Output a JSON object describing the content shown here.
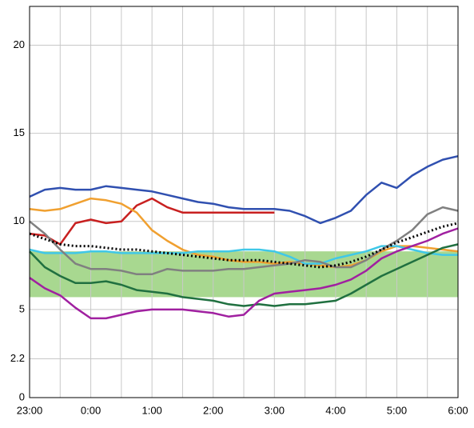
{
  "chart_data": {
    "type": "line",
    "x": [
      0,
      0.25,
      0.5,
      0.75,
      1,
      1.25,
      1.5,
      1.75,
      2,
      2.25,
      2.5,
      2.75,
      3,
      3.25,
      3.5,
      3.75,
      4,
      4.25,
      4.5,
      4.75,
      5,
      5.25,
      5.5,
      5.75,
      6,
      6.25,
      6.5,
      6.75,
      7
    ],
    "xlim": [
      0,
      7
    ],
    "xticks": [
      {
        "value": 0,
        "label": "23:00"
      },
      {
        "value": 1,
        "label": "0:00"
      },
      {
        "value": 2,
        "label": "1:00"
      },
      {
        "value": 3,
        "label": "2:00"
      },
      {
        "value": 4,
        "label": "3:00"
      },
      {
        "value": 5,
        "label": "4:00"
      },
      {
        "value": 6,
        "label": "5:00"
      },
      {
        "value": 7,
        "label": "6:00"
      }
    ],
    "xminor": [
      0.5,
      1.5,
      2.5,
      3.5,
      4.5,
      5.5,
      6.5
    ],
    "ylim": [
      0,
      22.2
    ],
    "yticks": [
      0,
      2.2,
      5,
      10,
      15,
      20
    ],
    "grid": true,
    "target_range": [
      5.7,
      8.3
    ],
    "target_color": "#a8d890",
    "series": [
      {
        "color": "#3050b0",
        "values": [
          11.4,
          11.8,
          11.9,
          11.8,
          11.8,
          12.0,
          11.9,
          11.8,
          11.7,
          11.5,
          11.3,
          11.1,
          11.0,
          10.8,
          10.7,
          10.7,
          10.7,
          10.6,
          10.3,
          9.9,
          10.2,
          10.6,
          11.5,
          12.2,
          11.9,
          12.6,
          13.1,
          13.5,
          13.7
        ]
      },
      {
        "color": "#c82020",
        "values": [
          9.3,
          9.2,
          8.7,
          9.9,
          10.1,
          9.9,
          10.0,
          10.9,
          11.3,
          10.8,
          10.5,
          10.5,
          10.5,
          10.5,
          10.5,
          10.5,
          10.5,
          null,
          null,
          null,
          null,
          null,
          null,
          null,
          null,
          null,
          null,
          null,
          null
        ]
      },
      {
        "color": "#f0a030",
        "values": [
          10.7,
          10.6,
          10.7,
          11.0,
          11.3,
          11.2,
          11.0,
          10.5,
          9.5,
          8.9,
          8.4,
          8.1,
          8.0,
          7.8,
          7.7,
          7.7,
          7.6,
          7.7,
          7.6,
          7.5,
          7.4,
          7.5,
          7.8,
          8.3,
          8.6,
          8.6,
          8.5,
          8.4,
          8.3
        ]
      },
      {
        "color": "#40c8e8",
        "values": [
          8.4,
          8.2,
          8.2,
          8.2,
          8.3,
          8.3,
          8.2,
          8.2,
          8.2,
          8.2,
          8.2,
          8.3,
          8.3,
          8.3,
          8.4,
          8.4,
          8.3,
          8.0,
          7.6,
          7.6,
          7.9,
          8.1,
          8.3,
          8.6,
          8.6,
          8.4,
          8.2,
          8.1,
          8.1
        ]
      },
      {
        "color": "#808080",
        "values": [
          10.0,
          9.3,
          8.4,
          7.6,
          7.3,
          7.3,
          7.2,
          7.0,
          7.0,
          7.3,
          7.2,
          7.2,
          7.2,
          7.3,
          7.3,
          7.4,
          7.5,
          7.6,
          7.8,
          7.7,
          7.4,
          7.4,
          7.8,
          8.4,
          8.9,
          9.5,
          10.4,
          10.8,
          10.6
        ]
      },
      {
        "color": "#207040",
        "values": [
          8.3,
          7.4,
          6.9,
          6.5,
          6.5,
          6.6,
          6.4,
          6.1,
          6.0,
          5.9,
          5.7,
          5.6,
          5.5,
          5.3,
          5.2,
          5.3,
          5.2,
          5.3,
          5.3,
          5.4,
          5.5,
          5.9,
          6.4,
          6.9,
          7.3,
          7.7,
          8.1,
          8.5,
          8.7
        ]
      },
      {
        "color": "#a020a0",
        "values": [
          6.8,
          6.2,
          5.8,
          5.1,
          4.5,
          4.5,
          4.7,
          4.9,
          5.0,
          5.0,
          5.0,
          4.9,
          4.8,
          4.6,
          4.7,
          5.5,
          5.9,
          6.0,
          6.1,
          6.2,
          6.4,
          6.7,
          7.2,
          7.9,
          8.3,
          8.6,
          8.9,
          9.3,
          9.6
        ]
      },
      {
        "color": "#000000",
        "dashed": true,
        "values": [
          9.3,
          9.0,
          8.7,
          8.6,
          8.6,
          8.5,
          8.4,
          8.4,
          8.3,
          8.2,
          8.1,
          8.0,
          7.9,
          7.8,
          7.8,
          7.8,
          7.7,
          7.6,
          7.5,
          7.4,
          7.5,
          7.7,
          8.0,
          8.4,
          8.8,
          9.1,
          9.4,
          9.7,
          9.9
        ]
      }
    ]
  }
}
